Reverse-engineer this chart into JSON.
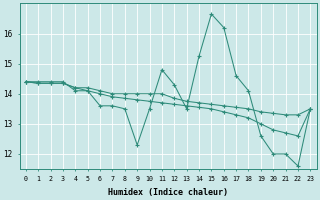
{
  "xlabel": "Humidex (Indice chaleur)",
  "bg_color": "#cce8e8",
  "line_color": "#2e8b7a",
  "grid_color": "#ffffff",
  "xlim": [
    -0.5,
    23.5
  ],
  "ylim": [
    11.5,
    17.0
  ],
  "yticks": [
    12,
    13,
    14,
    15,
    16
  ],
  "xticks": [
    0,
    1,
    2,
    3,
    4,
    5,
    6,
    7,
    8,
    9,
    10,
    11,
    12,
    13,
    14,
    15,
    16,
    17,
    18,
    19,
    20,
    21,
    22,
    23
  ],
  "series": [
    [
      14.4,
      14.4,
      14.4,
      14.4,
      14.1,
      14.1,
      13.6,
      13.6,
      13.5,
      12.3,
      13.5,
      14.8,
      14.3,
      13.5,
      15.25,
      16.65,
      16.2,
      14.6,
      14.1,
      12.6,
      12.0,
      12.0,
      11.6,
      13.5
    ],
    [
      14.4,
      14.35,
      14.35,
      14.35,
      14.2,
      14.2,
      14.1,
      14.0,
      14.0,
      14.0,
      14.0,
      14.0,
      13.85,
      13.75,
      13.7,
      13.65,
      13.6,
      13.55,
      13.5,
      13.4,
      13.35,
      13.3,
      13.3,
      13.5
    ],
    [
      14.4,
      14.35,
      14.35,
      14.35,
      14.2,
      14.1,
      14.0,
      13.9,
      13.85,
      13.8,
      13.75,
      13.7,
      13.65,
      13.6,
      13.55,
      13.5,
      13.4,
      13.3,
      13.2,
      13.0,
      12.8,
      12.7,
      12.6,
      13.5
    ]
  ]
}
